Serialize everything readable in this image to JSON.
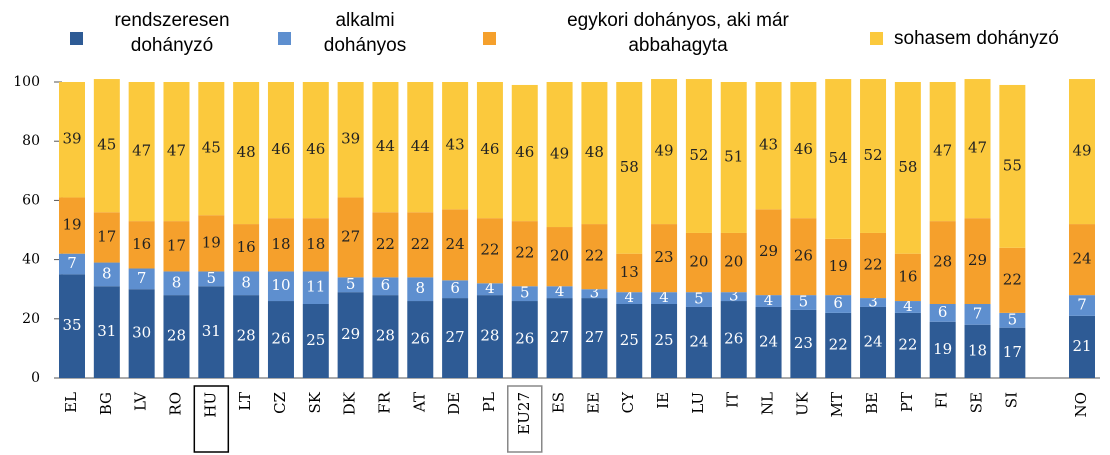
{
  "chart_data": {
    "type": "stacked_bar",
    "categories": [
      "EL",
      "BG",
      "LV",
      "RO",
      "HU",
      "LT",
      "CZ",
      "SK",
      "DK",
      "FR",
      "AT",
      "DE",
      "PL",
      "EU27",
      "ES",
      "EE",
      "CY",
      "IE",
      "LU",
      "IT",
      "NL",
      "UK",
      "MT",
      "BE",
      "PT",
      "FI",
      "SE",
      "SI",
      null,
      "NO"
    ],
    "series": [
      {
        "name": "rendszeresen dohányzó",
        "color": "#2e5b95",
        "values": [
          35,
          31,
          30,
          28,
          31,
          28,
          26,
          25,
          29,
          28,
          26,
          27,
          28,
          26,
          27,
          27,
          25,
          25,
          24,
          26,
          24,
          23,
          22,
          24,
          22,
          19,
          18,
          17,
          null,
          21
        ]
      },
      {
        "name": "alkalmi dohányos",
        "color": "#5e8fcf",
        "values": [
          7,
          8,
          7,
          8,
          5,
          8,
          10,
          11,
          5,
          6,
          8,
          6,
          4,
          5,
          4,
          3,
          4,
          4,
          5,
          3,
          4,
          5,
          6,
          3,
          4,
          6,
          7,
          5,
          null,
          7
        ]
      },
      {
        "name": "egykori dohányos, aki már abbahagyta",
        "color": "#f5a02c",
        "values": [
          19,
          17,
          16,
          17,
          19,
          16,
          18,
          18,
          27,
          22,
          22,
          24,
          22,
          22,
          20,
          22,
          13,
          23,
          20,
          20,
          29,
          26,
          19,
          22,
          16,
          28,
          29,
          22,
          null,
          24
        ]
      },
      {
        "name": "sohasem dohányzó",
        "color": "#fbc93d",
        "values": [
          39,
          45,
          47,
          47,
          45,
          48,
          46,
          46,
          39,
          44,
          44,
          43,
          46,
          46,
          49,
          48,
          58,
          49,
          52,
          51,
          43,
          46,
          54,
          52,
          58,
          47,
          47,
          55,
          null,
          49
        ]
      }
    ],
    "ylim": [
      0,
      100
    ],
    "yticks": [
      0,
      20,
      40,
      60,
      80,
      100
    ]
  }
}
